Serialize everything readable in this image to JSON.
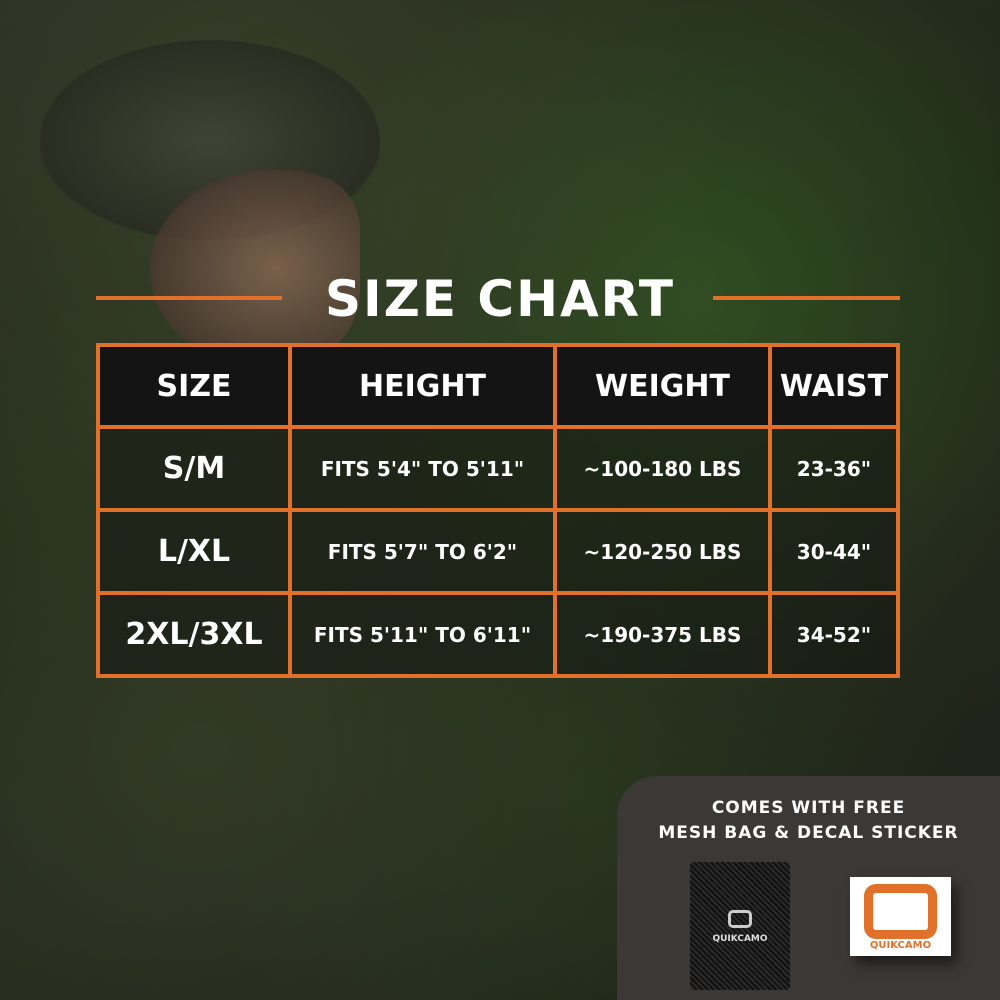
{
  "title": "SIZE CHART",
  "colors": {
    "accent": "#e0702a",
    "header_bg": "#141414",
    "panel_bg": "#3b3835"
  },
  "table": {
    "headers": [
      "SIZE",
      "HEIGHT",
      "WEIGHT",
      "WAIST"
    ],
    "rows": [
      [
        "S/M",
        "FITS 5'4\" TO 5'11\"",
        "~100-180 LBS",
        "23-36\""
      ],
      [
        "L/XL",
        "FITS 5'7\" TO 6'2\"",
        "~120-250 LBS",
        "30-44\""
      ],
      [
        "2XL/3XL",
        "FITS 5'11\" TO 6'11\"",
        "~190-375 LBS",
        "34-52\""
      ]
    ]
  },
  "promo": {
    "line1": "COMES WITH FREE",
    "line2": "MESH BAG & DECAL STICKER"
  },
  "brand": "QUIKCAMO"
}
